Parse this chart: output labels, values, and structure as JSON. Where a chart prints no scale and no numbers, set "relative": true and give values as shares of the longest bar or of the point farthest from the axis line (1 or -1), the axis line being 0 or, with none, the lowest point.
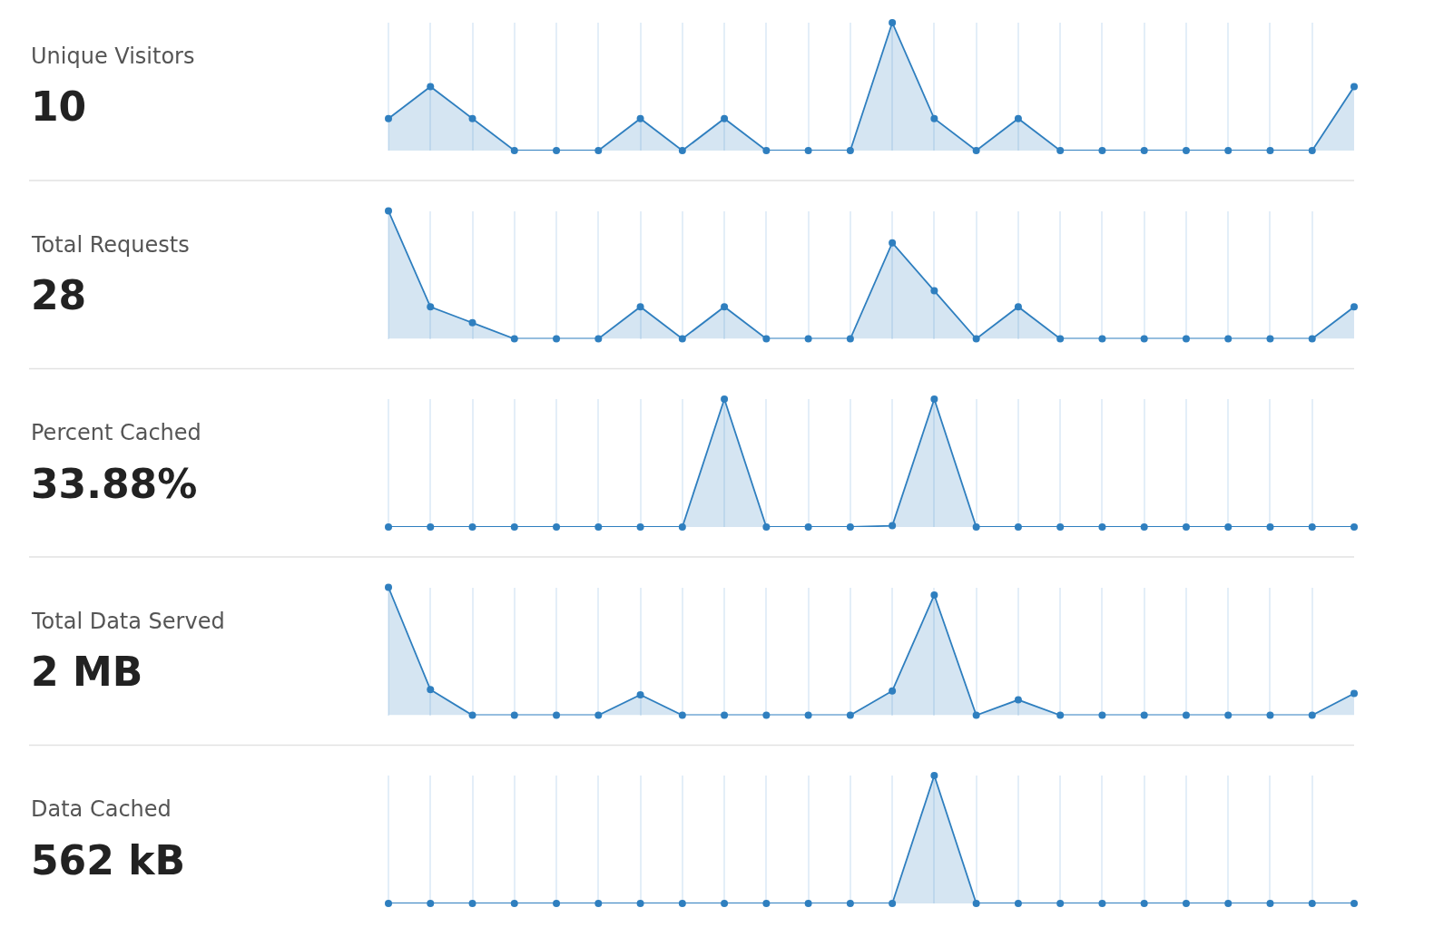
{
  "chart_data": [
    {
      "type": "area",
      "annotations": [
        "Unique Visitors",
        "10"
      ],
      "relative": true,
      "grid": "x",
      "marker": "circle",
      "categories": [
        null,
        null,
        null,
        null,
        null,
        null,
        null,
        null,
        null,
        null,
        null,
        null,
        null,
        null,
        null,
        null,
        null,
        null,
        null,
        null,
        null,
        null,
        null,
        null
      ],
      "series": [
        {
          "color": "#2f7fbf",
          "values": [
            0.25,
            0.5,
            0.25,
            0,
            0,
            0,
            0.25,
            0,
            0.25,
            0,
            0,
            0,
            1,
            0.25,
            0,
            0.25,
            0,
            0,
            0,
            0,
            0,
            0,
            0,
            0.5
          ]
        }
      ]
    },
    {
      "type": "area",
      "annotations": [
        "Total Requests",
        "28"
      ],
      "relative": true,
      "grid": "x",
      "marker": "circle",
      "categories": [
        null,
        null,
        null,
        null,
        null,
        null,
        null,
        null,
        null,
        null,
        null,
        null,
        null,
        null,
        null,
        null,
        null,
        null,
        null,
        null,
        null,
        null,
        null,
        null
      ],
      "series": [
        {
          "color": "#2f7fbf",
          "values": [
            1,
            0.25,
            0.125,
            0,
            0,
            0,
            0.25,
            0,
            0.25,
            0,
            0,
            0,
            0.75,
            0.375,
            0,
            0.25,
            0,
            0,
            0,
            0,
            0,
            0,
            0,
            0.25
          ]
        }
      ]
    },
    {
      "type": "area",
      "annotations": [
        "Percent Cached",
        "33.88%"
      ],
      "relative": true,
      "grid": "x",
      "marker": "circle",
      "categories": [
        null,
        null,
        null,
        null,
        null,
        null,
        null,
        null,
        null,
        null,
        null,
        null,
        null,
        null,
        null,
        null,
        null,
        null,
        null,
        null,
        null,
        null,
        null,
        null
      ],
      "series": [
        {
          "color": "#2f7fbf",
          "values": [
            0,
            0,
            0,
            0,
            0,
            0,
            0,
            0,
            1,
            0,
            0,
            0,
            0.01,
            1,
            0,
            0,
            0,
            0,
            0,
            0,
            0,
            0,
            0,
            0
          ]
        }
      ]
    },
    {
      "type": "area",
      "annotations": [
        "Total Data Served",
        "2 MB"
      ],
      "relative": true,
      "grid": "x",
      "marker": "circle",
      "categories": [
        null,
        null,
        null,
        null,
        null,
        null,
        null,
        null,
        null,
        null,
        null,
        null,
        null,
        null,
        null,
        null,
        null,
        null,
        null,
        null,
        null,
        null,
        null,
        null
      ],
      "series": [
        {
          "color": "#2f7fbf",
          "values": [
            1,
            0.2,
            0,
            0,
            0,
            0,
            0.16,
            0,
            0,
            0,
            0,
            0,
            0.19,
            0.94,
            0,
            0.12,
            0,
            0,
            0,
            0,
            0,
            0,
            0,
            0.17
          ]
        }
      ]
    },
    {
      "type": "area",
      "annotations": [
        "Data Cached",
        "562 kB"
      ],
      "relative": true,
      "grid": "x",
      "marker": "circle",
      "categories": [
        null,
        null,
        null,
        null,
        null,
        null,
        null,
        null,
        null,
        null,
        null,
        null,
        null,
        null,
        null,
        null,
        null,
        null,
        null,
        null,
        null,
        null,
        null,
        null
      ],
      "series": [
        {
          "color": "#2f7fbf",
          "values": [
            0,
            0,
            0,
            0,
            0,
            0,
            0,
            0,
            0,
            0,
            0,
            0,
            0,
            1,
            0,
            0,
            0,
            0,
            0,
            0,
            0,
            0,
            0,
            0
          ]
        }
      ]
    }
  ]
}
